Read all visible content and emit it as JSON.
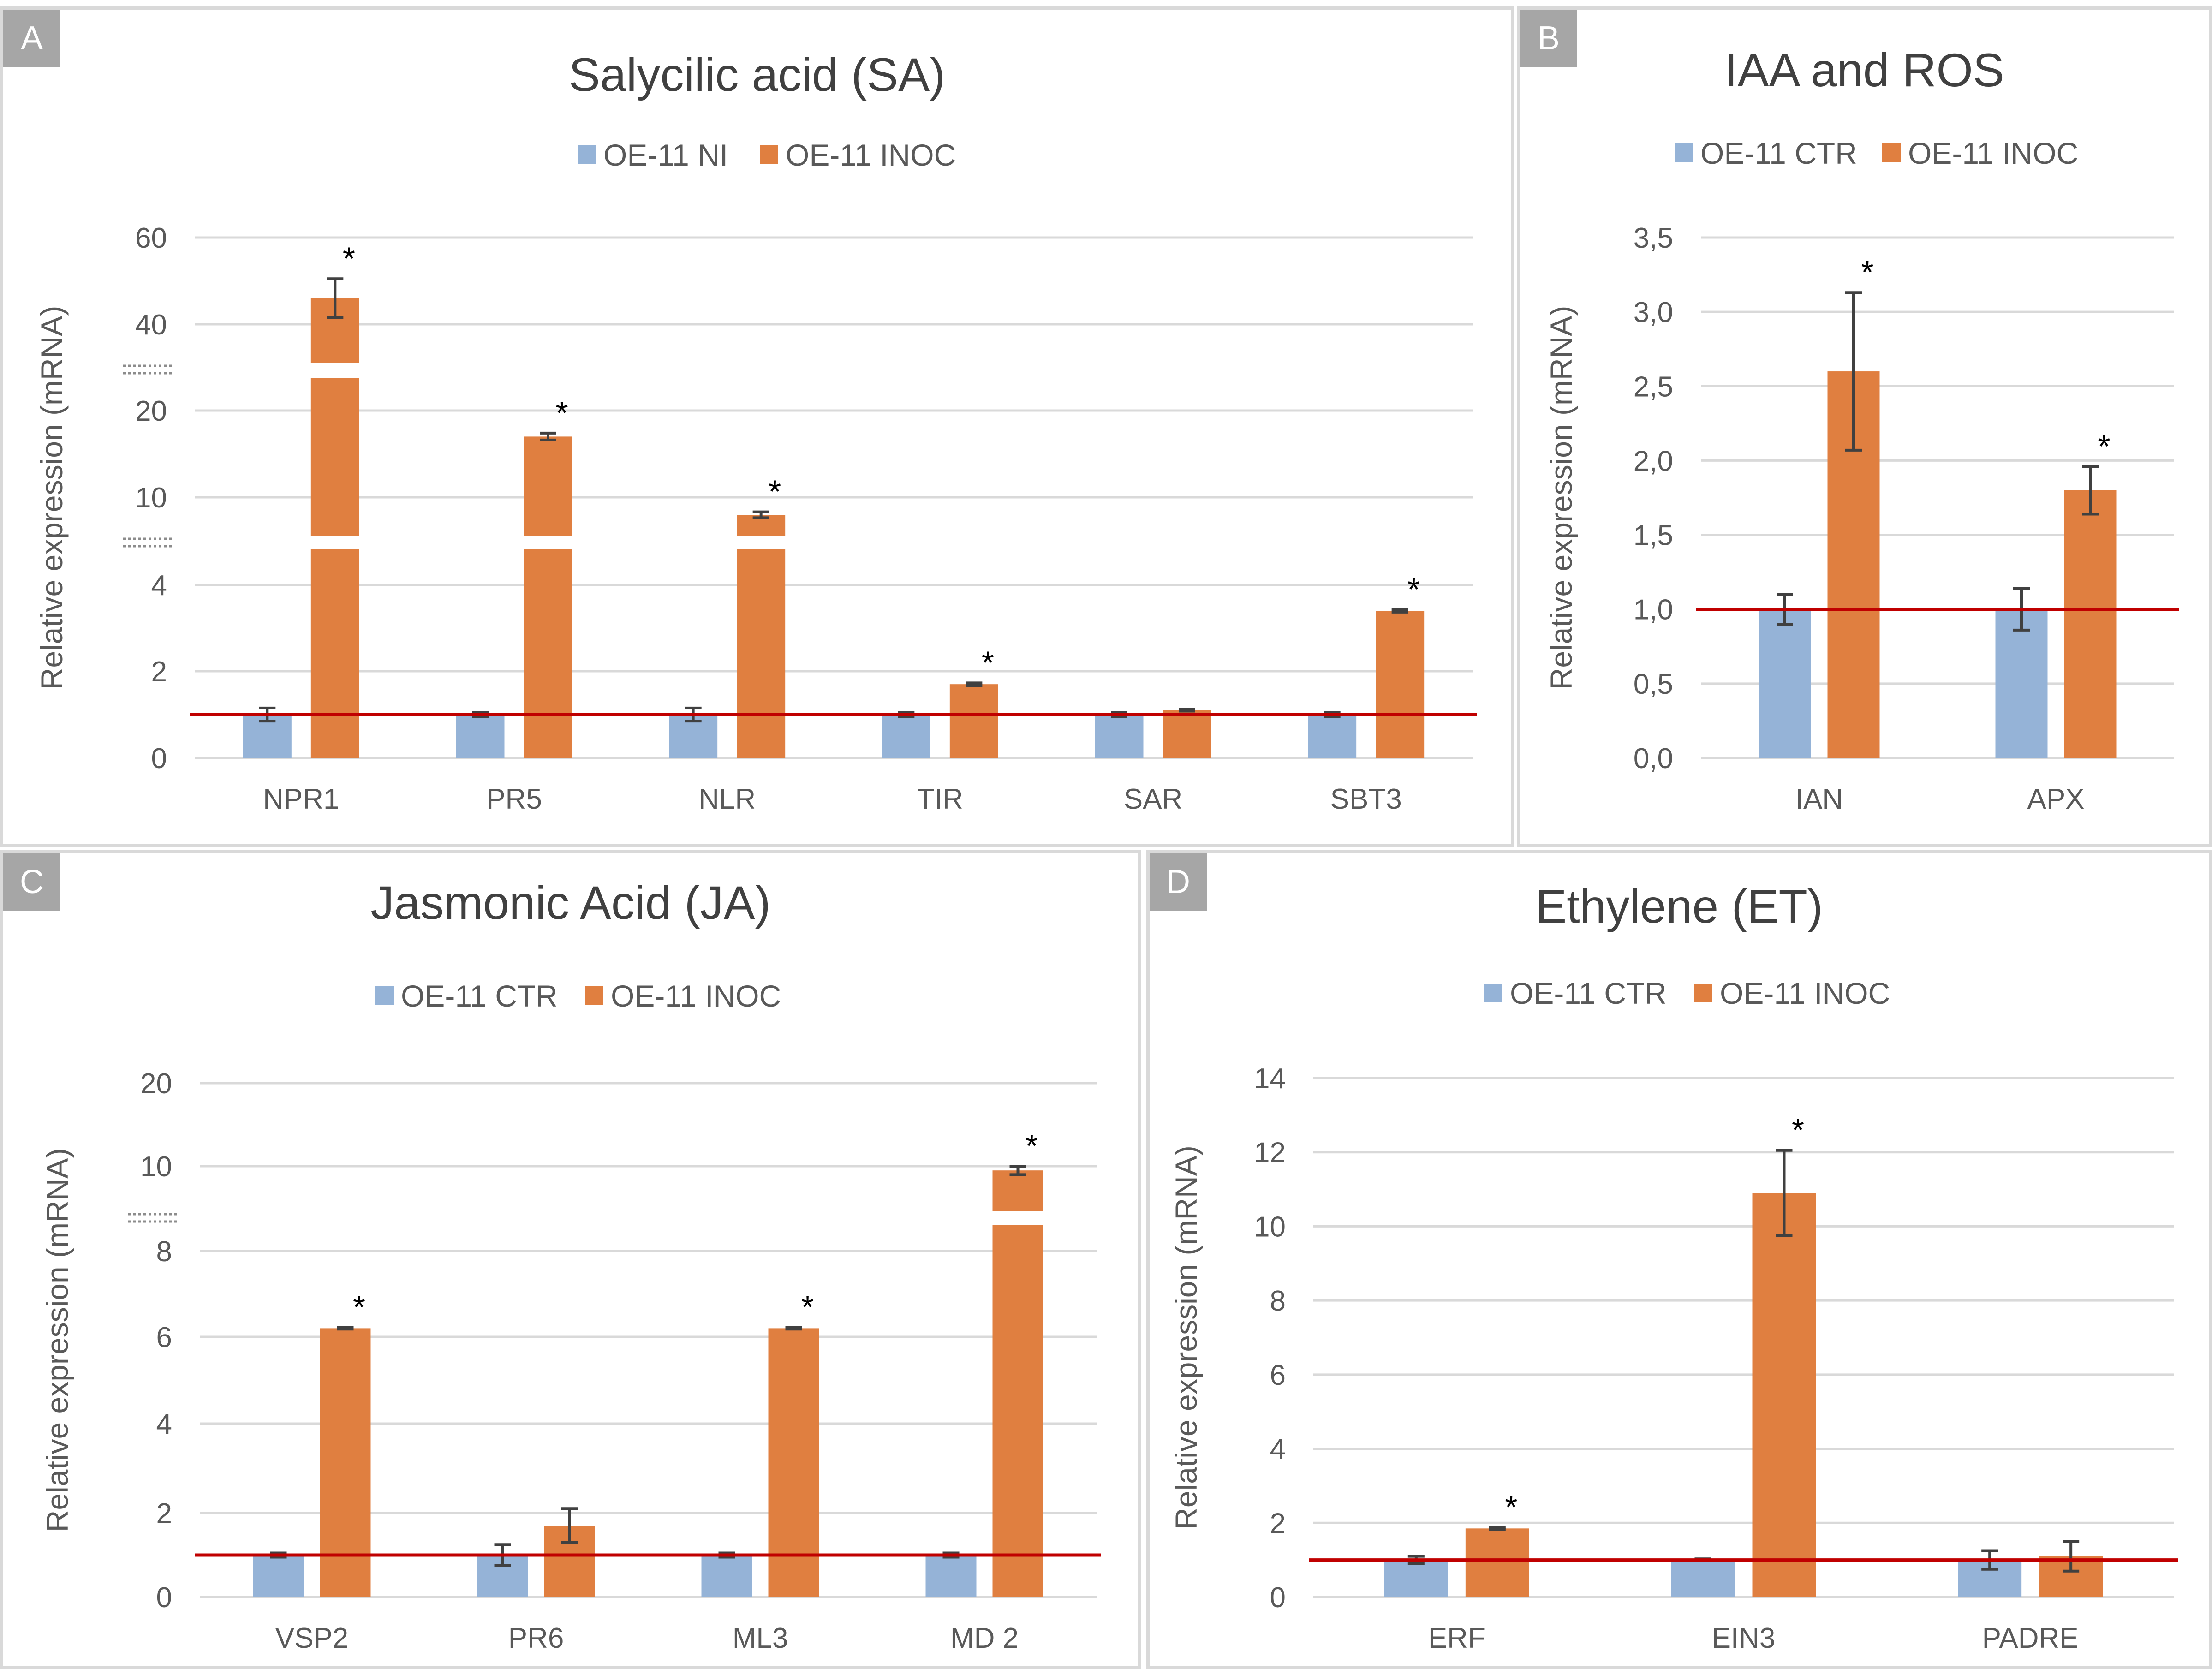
{
  "colors": {
    "ctr": "#95b3d7",
    "inoc": "#e07f40",
    "reference_line": "#c00000",
    "grid": "#d9d9d9"
  },
  "panels": [
    {
      "letter": "A",
      "chart_data": {
        "type": "bar",
        "title": "Salycilic acid (SA)",
        "ylabel": "Relative expression (mRNA)",
        "xlabel": "",
        "y_ticks": [
          "0",
          "2",
          "4",
          "10",
          "20",
          "40",
          "60"
        ],
        "axis_breaks": [
          "4-10",
          "20-40"
        ],
        "categories": [
          "NPR1",
          "PR5",
          "NLR",
          "TIR",
          "SAR",
          "SBT3"
        ],
        "series": [
          {
            "name": "OE-11 NI",
            "values": [
              1.0,
              1.0,
              1.0,
              1.0,
              1.0,
              1.0
            ],
            "errors": [
              0.15,
              0.05,
              0.15,
              0.05,
              0.05,
              0.05
            ]
          },
          {
            "name": "OE-11 INOC",
            "values": [
              46.0,
              17.0,
              8.8,
              1.7,
              1.1,
              3.4
            ],
            "errors": [
              4.5,
              0.4,
              0.2,
              0.03,
              0.02,
              0.03
            ]
          }
        ],
        "significant": [
          "*",
          "*",
          "*",
          "*",
          "",
          "*"
        ],
        "reference_line": 1.0
      }
    },
    {
      "letter": "B",
      "chart_data": {
        "type": "bar",
        "title": "IAA and ROS",
        "ylabel": "Relative expression (mRNA)",
        "xlabel": "",
        "y_ticks": [
          "0,0",
          "0,5",
          "1,0",
          "1,5",
          "2,0",
          "2,5",
          "3,0",
          "3,5"
        ],
        "ylim": [
          0,
          3.5
        ],
        "categories": [
          "IAN",
          "APX"
        ],
        "series": [
          {
            "name": "OE-11 CTR",
            "values": [
              1.0,
              1.0
            ],
            "errors": [
              0.1,
              0.14
            ]
          },
          {
            "name": "OE-11 INOC",
            "values": [
              2.6,
              1.8
            ],
            "errors": [
              0.53,
              0.16
            ]
          }
        ],
        "significant": [
          "*",
          "*"
        ],
        "reference_line": 1.0
      }
    },
    {
      "letter": "C",
      "chart_data": {
        "type": "bar",
        "title": "Jasmonic Acid (JA)",
        "ylabel": "Relative expression (mRNA)",
        "xlabel": "",
        "y_ticks": [
          "0",
          "2",
          "4",
          "6",
          "8",
          "10",
          "20"
        ],
        "axis_breaks": [
          "8-10"
        ],
        "categories": [
          "VSP2",
          "PR6",
          "ML3",
          "MD 2"
        ],
        "series": [
          {
            "name": "OE-11 CTR",
            "values": [
              1.0,
              1.0,
              1.0,
              1.0
            ],
            "errors": [
              0.05,
              0.25,
              0.05,
              0.05
            ]
          },
          {
            "name": "OE-11 INOC",
            "values": [
              6.2,
              1.7,
              6.2,
              9.9
            ],
            "errors": [
              0.02,
              0.4,
              0.02,
              0.1
            ]
          }
        ],
        "significant": [
          "*",
          "",
          "*",
          "*"
        ],
        "reference_line": 1.0
      }
    },
    {
      "letter": "D",
      "chart_data": {
        "type": "bar",
        "title": "Ethylene (ET)",
        "ylabel": "Relative expression (mRNA)",
        "xlabel": "",
        "y_ticks": [
          "0",
          "2",
          "4",
          "6",
          "8",
          "10",
          "12",
          "14"
        ],
        "ylim": [
          0,
          14
        ],
        "categories": [
          "ERF",
          "EIN3",
          "PADRE"
        ],
        "series": [
          {
            "name": "OE-11 CTR",
            "values": [
              1.0,
              1.0,
              1.0
            ],
            "errors": [
              0.1,
              0.03,
              0.25
            ]
          },
          {
            "name": "OE-11 INOC",
            "values": [
              1.85,
              10.9,
              1.1
            ],
            "errors": [
              0.03,
              1.15,
              0.4
            ]
          }
        ],
        "significant": [
          "*",
          "*",
          ""
        ],
        "reference_line": 1.0
      }
    }
  ]
}
